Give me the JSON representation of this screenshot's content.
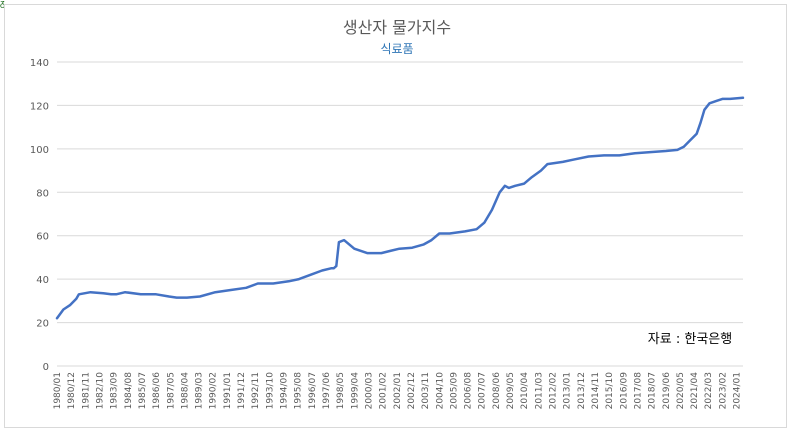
{
  "corner_mark": "ᵹ",
  "chart_data": {
    "type": "line",
    "title": "생산자 물가지수",
    "subtitle": "식료품",
    "annotation": "자료 : 한국은행",
    "xlabel": "",
    "ylabel": "",
    "ylim": [
      0,
      140
    ],
    "yticks": [
      0,
      20,
      40,
      60,
      80,
      100,
      120,
      140
    ],
    "grid": true,
    "legend": "none",
    "colors": {
      "line": "#4472c4",
      "title": "#595959",
      "subtitle": "#2e75b6",
      "grid": "#d9d9d9",
      "tick": "#595959"
    },
    "x_tick_labels": [
      "1980/01",
      "1980/12",
      "1981/11",
      "1982/10",
      "1983/09",
      "1984/08",
      "1985/07",
      "1986/06",
      "1987/05",
      "1988/04",
      "1989/03",
      "1990/02",
      "1991/01",
      "1991/12",
      "1992/11",
      "1993/10",
      "1994/09",
      "1995/08",
      "1996/07",
      "1997/06",
      "1998/05",
      "1999/04",
      "2000/03",
      "2001/02",
      "2002/01",
      "2002/12",
      "2003/11",
      "2004/10",
      "2005/09",
      "2006/08",
      "2007/07",
      "2008/06",
      "2009/05",
      "2010/04",
      "2011/03",
      "2012/02",
      "2013/01",
      "2013/12",
      "2014/11",
      "2015/10",
      "2016/09",
      "2017/08",
      "2018/07",
      "2019/06",
      "2020/05",
      "2021/04",
      "2022/03",
      "2023/02",
      "2024/01"
    ],
    "x": [
      "1980/01",
      "1980/06",
      "1980/11",
      "1981/04",
      "1981/06",
      "1982/03",
      "1983/01",
      "1983/07",
      "1983/11",
      "1984/06",
      "1985/06",
      "1986/06",
      "1987/04",
      "1987/10",
      "1988/06",
      "1989/04",
      "1990/04",
      "1991/04",
      "1992/04",
      "1993/01",
      "1994/01",
      "1995/01",
      "1995/09",
      "1996/06",
      "1997/03",
      "1997/10",
      "1997/12",
      "1998/02",
      "1998/04",
      "1998/08",
      "1999/04",
      "2000/02",
      "2001/01",
      "2001/08",
      "2002/03",
      "2003/01",
      "2003/10",
      "2004/04",
      "2004/10",
      "2005/06",
      "2006/06",
      "2007/03",
      "2007/09",
      "2008/03",
      "2008/09",
      "2009/01",
      "2009/04",
      "2009/09",
      "2010/04",
      "2010/10",
      "2011/05",
      "2011/10",
      "2012/04",
      "2012/10",
      "2013/06",
      "2014/06",
      "2015/06",
      "2016/06",
      "2017/06",
      "2018/06",
      "2019/06",
      "2020/03",
      "2020/08",
      "2021/01",
      "2021/06",
      "2021/09",
      "2021/12",
      "2022/04",
      "2022/09",
      "2023/02",
      "2023/08",
      "2024/06"
    ],
    "values": [
      22,
      26,
      28,
      31,
      33,
      34,
      33.5,
      33,
      33,
      34,
      33,
      33,
      32,
      31.5,
      31.5,
      32,
      34,
      35,
      36,
      38,
      38,
      39,
      40,
      42,
      44,
      45,
      45,
      46,
      57,
      58,
      54,
      52,
      52,
      53,
      54,
      54.5,
      56,
      58,
      61,
      61,
      62,
      63,
      66,
      72,
      80,
      83,
      82,
      83,
      84,
      87,
      90,
      93,
      93.5,
      94,
      95,
      96.5,
      97,
      97,
      98,
      98.5,
      99,
      99.5,
      101,
      104,
      107,
      112,
      118,
      121,
      122,
      123,
      123,
      123.5
    ]
  }
}
